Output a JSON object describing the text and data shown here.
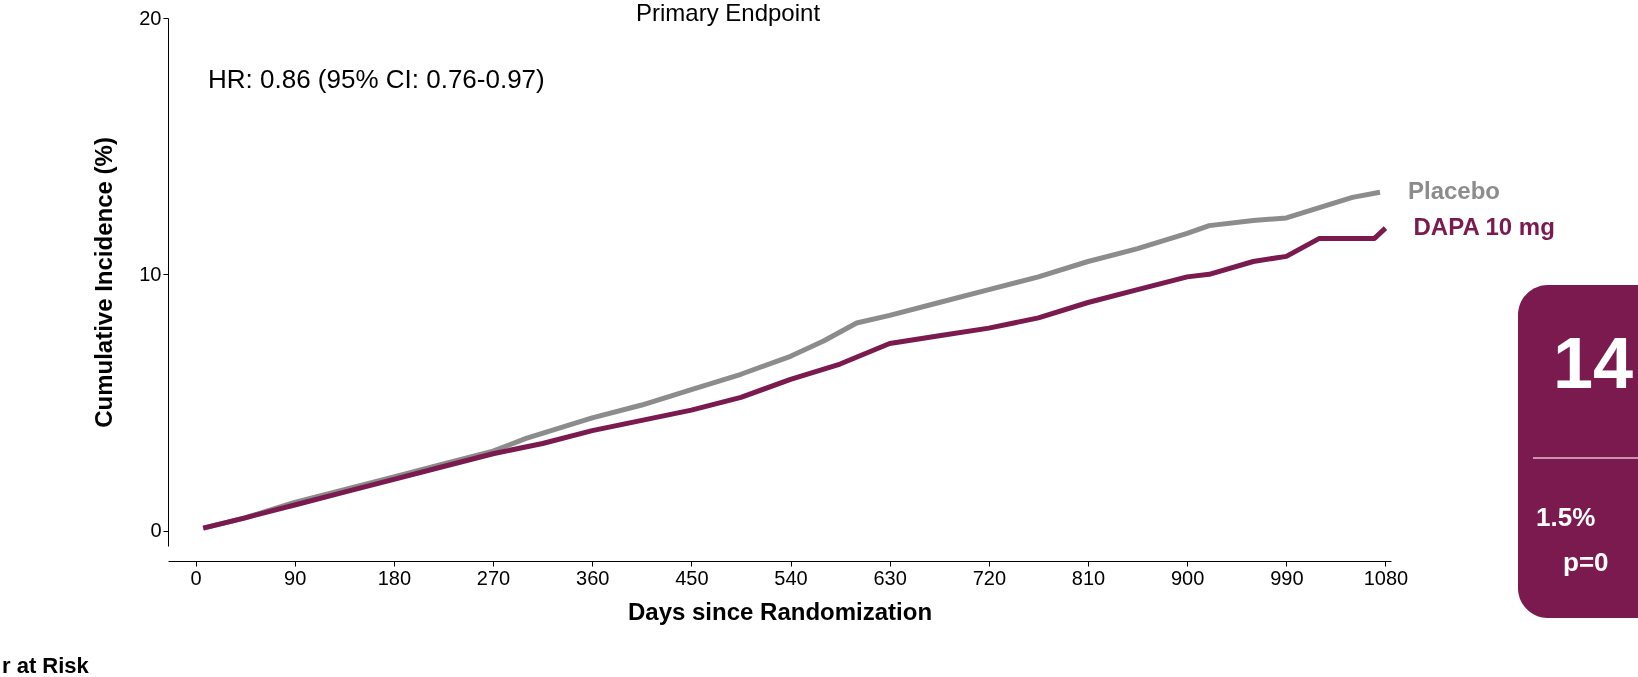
{
  "chart_data": {
    "type": "line",
    "title": "Primary Endpoint",
    "xlabel": "Days since Randomization",
    "ylabel": "Cumulative Incidence (%)",
    "annotations": [
      "HR: 0.86 (95% CI: 0.76-0.97)",
      "14",
      "1.5%",
      "p=0",
      "r at Risk"
    ],
    "xlim": [
      -25,
      1085
    ],
    "xticks": [
      0,
      90,
      180,
      270,
      360,
      450,
      540,
      630,
      720,
      810,
      900,
      990,
      1080
    ],
    "ylim": [
      -0.6,
      20
    ],
    "yticks": [
      0,
      10,
      20
    ],
    "grid": false,
    "legend": false,
    "line_style": "solid",
    "marker": "none",
    "series": [
      {
        "name": "Placebo",
        "color": "#8c8c8c",
        "x": [
          7,
          45,
          90,
          135,
          180,
          225,
          270,
          300,
          330,
          360,
          405,
          450,
          495,
          540,
          570,
          600,
          630,
          675,
          720,
          765,
          810,
          855,
          900,
          920,
          960,
          990,
          1020,
          1050,
          1075
        ],
        "values": [
          0.1,
          0.5,
          1.1,
          1.6,
          2.1,
          2.6,
          3.1,
          3.6,
          4.0,
          4.4,
          4.9,
          5.5,
          6.1,
          6.8,
          7.4,
          8.1,
          8.4,
          8.9,
          9.4,
          9.9,
          10.5,
          11.0,
          11.6,
          11.9,
          12.1,
          12.2,
          12.6,
          13.0,
          13.2
        ]
      },
      {
        "name": "DAPA 10 mg",
        "color": "#7a1a4e",
        "x": [
          7,
          45,
          90,
          135,
          180,
          225,
          270,
          315,
          360,
          405,
          450,
          495,
          540,
          585,
          630,
          675,
          720,
          765,
          810,
          855,
          900,
          920,
          960,
          990,
          1020,
          1050,
          1070,
          1080
        ],
        "values": [
          0.1,
          0.5,
          1.0,
          1.5,
          2.0,
          2.5,
          3.0,
          3.4,
          3.9,
          4.3,
          4.7,
          5.2,
          5.9,
          6.5,
          7.3,
          7.6,
          7.9,
          8.3,
          8.9,
          9.4,
          9.9,
          10.0,
          10.5,
          10.7,
          11.4,
          11.4,
          11.4,
          11.8
        ]
      }
    ]
  }
}
